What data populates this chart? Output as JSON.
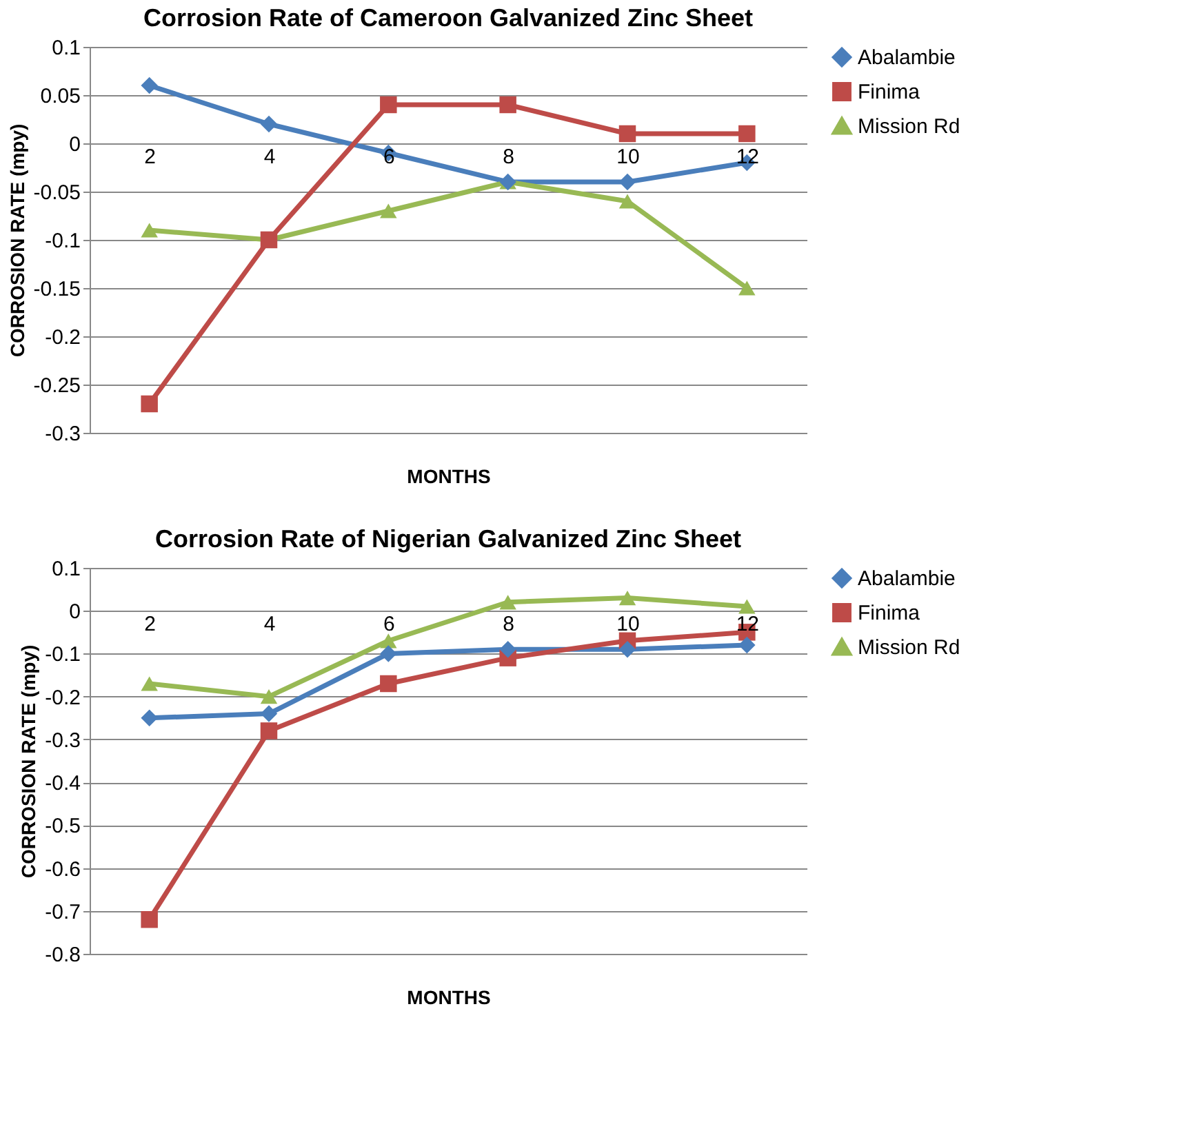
{
  "chart_data": [
    {
      "type": "line",
      "title": "Corrosion Rate of Cameroon Galvanized Zinc Sheet",
      "xlabel": "MONTHS",
      "ylabel": "CORROSION RATE  (mpy)",
      "categories": [
        "2",
        "4",
        "6",
        "8",
        "10",
        "12"
      ],
      "series": [
        {
          "name": "Abalambie",
          "color": "#4a7ebb",
          "marker": "diamond",
          "values": [
            0.06,
            0.02,
            -0.01,
            -0.04,
            -0.04,
            -0.02
          ]
        },
        {
          "name": "Finima",
          "color": "#be4b48",
          "marker": "square",
          "values": [
            -0.27,
            -0.1,
            0.04,
            0.04,
            0.01,
            0.01
          ]
        },
        {
          "name": "Mission Rd",
          "color": "#98b954",
          "marker": "triangle",
          "values": [
            -0.09,
            -0.1,
            -0.07,
            -0.04,
            -0.06,
            -0.15
          ]
        }
      ],
      "ylim": [
        -0.3,
        0.1
      ],
      "yticks": [
        -0.3,
        -0.25,
        -0.2,
        -0.15,
        -0.1,
        -0.05,
        0,
        0.05,
        0.1
      ],
      "grid": "y",
      "legend": "right"
    },
    {
      "type": "line",
      "title": "Corrosion Rate of Nigerian Galvanized Zinc Sheet",
      "xlabel": "MONTHS",
      "ylabel": "CORROSION RATE (mpy)",
      "categories": [
        "2",
        "4",
        "6",
        "8",
        "10",
        "12"
      ],
      "series": [
        {
          "name": "Abalambie",
          "color": "#4a7ebb",
          "marker": "diamond",
          "values": [
            -0.25,
            -0.24,
            -0.1,
            -0.09,
            -0.09,
            -0.08
          ]
        },
        {
          "name": "Finima",
          "color": "#be4b48",
          "marker": "square",
          "values": [
            -0.72,
            -0.28,
            -0.17,
            -0.11,
            -0.07,
            -0.05
          ]
        },
        {
          "name": "Mission Rd",
          "color": "#98b954",
          "marker": "triangle",
          "values": [
            -0.17,
            -0.2,
            -0.07,
            0.02,
            0.03,
            0.01
          ]
        }
      ],
      "ylim": [
        -0.8,
        0.1
      ],
      "yticks": [
        -0.8,
        -0.7,
        -0.6,
        -0.5,
        -0.4,
        -0.3,
        -0.2,
        -0.1,
        0,
        0.1
      ],
      "grid": "y",
      "legend": "right"
    }
  ]
}
